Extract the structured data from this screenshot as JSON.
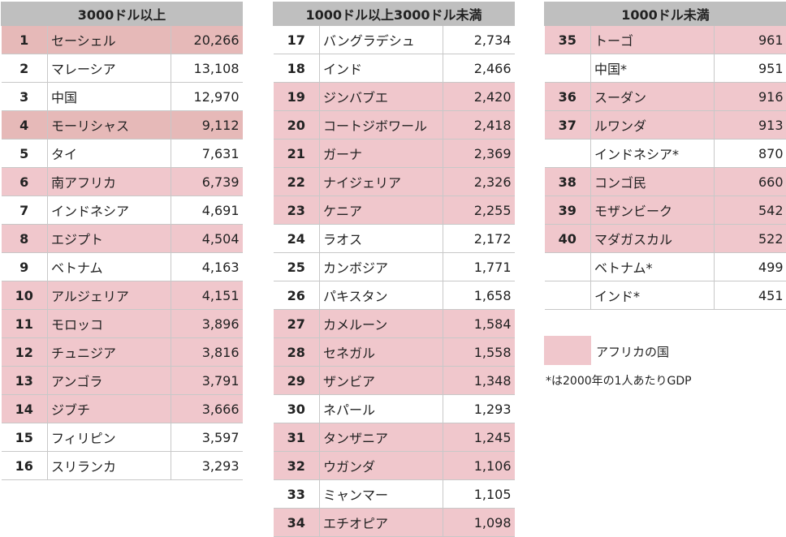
{
  "tables": [
    {
      "title": "3000ドル以上",
      "rows": [
        {
          "rank": "1",
          "name": "セーシェル",
          "value": "20,266",
          "africa": true
        },
        {
          "rank": "2",
          "name": "マレーシア",
          "value": "13,108",
          "africa": false
        },
        {
          "rank": "3",
          "name": "中国",
          "value": "12,970",
          "africa": false
        },
        {
          "rank": "4",
          "name": "モーリシャス",
          "value": "9,112",
          "africa": true
        },
        {
          "rank": "5",
          "name": "タイ",
          "value": "7,631",
          "africa": false
        },
        {
          "rank": "6",
          "name": "南アフリカ",
          "value": "6,739",
          "africa": true
        },
        {
          "rank": "7",
          "name": "インドネシア",
          "value": "4,691",
          "africa": false
        },
        {
          "rank": "8",
          "name": "エジプト",
          "value": "4,504",
          "africa": true
        },
        {
          "rank": "9",
          "name": "ベトナム",
          "value": "4,163",
          "africa": false
        },
        {
          "rank": "10",
          "name": "アルジェリア",
          "value": "4,151",
          "africa": true
        },
        {
          "rank": "11",
          "name": "モロッコ",
          "value": "3,896",
          "africa": true
        },
        {
          "rank": "12",
          "name": "チュニジア",
          "value": "3,816",
          "africa": true
        },
        {
          "rank": "13",
          "name": "アンゴラ",
          "value": "3,791",
          "africa": true
        },
        {
          "rank": "14",
          "name": "ジブチ",
          "value": "3,666",
          "africa": true
        },
        {
          "rank": "15",
          "name": "フィリピン",
          "value": "3,597",
          "africa": false
        },
        {
          "rank": "16",
          "name": "スリランカ",
          "value": "3,293",
          "africa": false
        }
      ]
    },
    {
      "title": "1000ドル以上3000ドル未満",
      "rows": [
        {
          "rank": "17",
          "name": "バングラデシュ",
          "value": "2,734",
          "africa": false
        },
        {
          "rank": "18",
          "name": "インド",
          "value": "2,466",
          "africa": false
        },
        {
          "rank": "19",
          "name": "ジンバブエ",
          "value": "2,420",
          "africa": true
        },
        {
          "rank": "20",
          "name": "コートジボワール",
          "value": "2,418",
          "africa": true
        },
        {
          "rank": "21",
          "name": "ガーナ",
          "value": "2,369",
          "africa": true
        },
        {
          "rank": "22",
          "name": "ナイジェリア",
          "value": "2,326",
          "africa": true
        },
        {
          "rank": "23",
          "name": "ケニア",
          "value": "2,255",
          "africa": true
        },
        {
          "rank": "24",
          "name": "ラオス",
          "value": "2,172",
          "africa": false
        },
        {
          "rank": "25",
          "name": "カンボジア",
          "value": "1,771",
          "africa": false
        },
        {
          "rank": "26",
          "name": "パキスタン",
          "value": "1,658",
          "africa": false
        },
        {
          "rank": "27",
          "name": "カメルーン",
          "value": "1,584",
          "africa": true
        },
        {
          "rank": "28",
          "name": "セネガル",
          "value": "1,558",
          "africa": true
        },
        {
          "rank": "29",
          "name": "ザンビア",
          "value": "1,348",
          "africa": true
        },
        {
          "rank": "30",
          "name": "ネパール",
          "value": "1,293",
          "africa": false
        },
        {
          "rank": "31",
          "name": "タンザニア",
          "value": "1,245",
          "africa": true
        },
        {
          "rank": "32",
          "name": "ウガンダ",
          "value": "1,106",
          "africa": true
        },
        {
          "rank": "33",
          "name": "ミャンマー",
          "value": "1,105",
          "africa": false
        },
        {
          "rank": "34",
          "name": "エチオピア",
          "value": "1,098",
          "africa": true
        }
      ]
    },
    {
      "title": "1000ドル未満",
      "rows": [
        {
          "rank": "35",
          "name": "トーゴ",
          "value": "961",
          "africa": true
        },
        {
          "rank": "",
          "name": "中国*",
          "value": "951",
          "africa": false
        },
        {
          "rank": "36",
          "name": "スーダン",
          "value": "916",
          "africa": true
        },
        {
          "rank": "37",
          "name": "ルワンダ",
          "value": "913",
          "africa": true
        },
        {
          "rank": "",
          "name": "インドネシア*",
          "value": "870",
          "africa": false
        },
        {
          "rank": "38",
          "name": "コンゴ民",
          "value": "660",
          "africa": true
        },
        {
          "rank": "39",
          "name": "モザンビーク",
          "value": "542",
          "africa": true
        },
        {
          "rank": "40",
          "name": "マダガスカル",
          "value": "522",
          "africa": true
        },
        {
          "rank": "",
          "name": "ベトナム*",
          "value": "499",
          "africa": false
        },
        {
          "rank": "",
          "name": "インド*",
          "value": "451",
          "africa": false
        }
      ]
    }
  ],
  "legend": {
    "label": "アフリカの国",
    "color": "#f0c7cc"
  },
  "note": "*は2000年の1人あたりGDP"
}
